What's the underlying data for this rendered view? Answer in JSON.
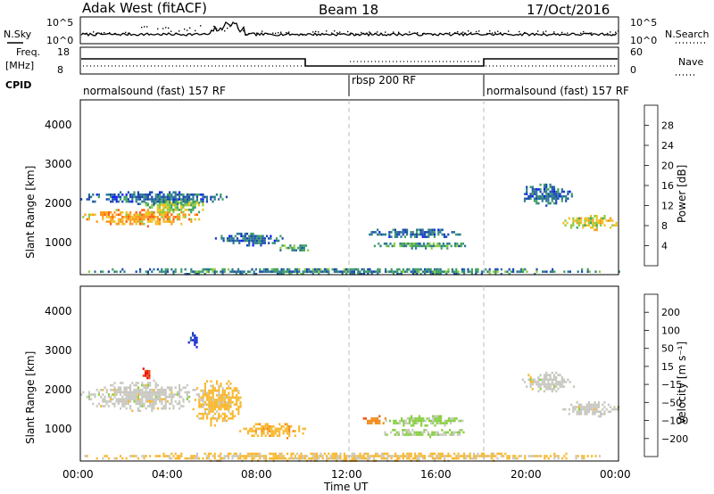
{
  "header": {
    "station": "Adak West (fitACF)",
    "beam": "Beam 18",
    "date": "17/Oct/2016"
  },
  "aux_panels": {
    "nsky_label": "N.Sky",
    "nsearch_label": "N.Search",
    "freq_label_1": "Freq.",
    "freq_label_2": "[MHz]",
    "nave_label": "Nave",
    "cpid_label": "CPID",
    "noise_left_ticks": [
      "10^5",
      "10^0"
    ],
    "noise_right_ticks": [
      "10^5",
      "10^0"
    ],
    "freq_left_ticks": [
      "18",
      "8"
    ],
    "nave_right_ticks": [
      "60",
      "0"
    ]
  },
  "cpid_segments": [
    {
      "label": "normalsound (fast) 157 RF",
      "start_hour": 0,
      "end_hour": 12
    },
    {
      "label": "rbsp 200 RF",
      "start_hour": 12,
      "end_hour": 18
    },
    {
      "label": "normalsound (fast) 157 RF",
      "start_hour": 18,
      "end_hour": 24
    }
  ],
  "axes": {
    "ylabel": "Slant Range [km]",
    "xlabel": "Time UT",
    "x_ticks": [
      "00:00",
      "04:00",
      "08:00",
      "12:00",
      "16:00",
      "20:00",
      "00:00"
    ],
    "y_ticks": [
      "1000",
      "2000",
      "3000",
      "4000"
    ]
  },
  "colorbars": {
    "power": {
      "label": "Power [dB]",
      "ticks": [
        "4",
        "8",
        "12",
        "16",
        "20",
        "24",
        "28"
      ],
      "colors": [
        "#0a1aff",
        "#1846b4",
        "#2a7890",
        "#3ea060",
        "#8ccc3c",
        "#f0c020",
        "#ff9618",
        "#ff5a10",
        "#ee1010"
      ]
    },
    "velocity": {
      "label": "Velocity [m s⁻¹]",
      "ticks": [
        "200",
        "100",
        "50",
        "15",
        "−15",
        "−50",
        "−100",
        "−200"
      ],
      "colors": [
        "#1a2ad0",
        "#2a66a8",
        "#3aa060",
        "#88d040",
        "#c8c8c0",
        "#f8b830",
        "#f08a18",
        "#f05010",
        "#e81010"
      ]
    }
  },
  "chart_data": [
    {
      "type": "heatmap",
      "title": "Power",
      "xlabel": "Time UT",
      "ylabel": "Slant Range [km]",
      "xlim_hours": [
        0,
        24
      ],
      "ylim_km": [
        180,
        4600
      ],
      "clim_db": [
        0,
        32
      ],
      "regions": [
        {
          "t_start": 0.0,
          "t_end": 5.5,
          "range_km": [
            1400,
            1900
          ],
          "value_db": 22
        },
        {
          "t_start": 2.8,
          "t_end": 5.6,
          "range_km": [
            1700,
            2200
          ],
          "value_db": 16
        },
        {
          "t_start": 0.0,
          "t_end": 6.5,
          "range_km": [
            1950,
            2350
          ],
          "value_db": 8
        },
        {
          "t_start": 6.0,
          "t_end": 9.0,
          "range_km": [
            900,
            1300
          ],
          "value_db": 8
        },
        {
          "t_start": 8.8,
          "t_end": 10.3,
          "range_km": [
            750,
            1000
          ],
          "value_db": 12
        },
        {
          "t_start": 12.6,
          "t_end": 17.2,
          "range_km": [
            1100,
            1400
          ],
          "value_db": 8
        },
        {
          "t_start": 13.0,
          "t_end": 17.5,
          "range_km": [
            850,
            1050
          ],
          "value_db": 12
        },
        {
          "t_start": 19.6,
          "t_end": 22.0,
          "range_km": [
            1900,
            2600
          ],
          "value_db": 8
        },
        {
          "t_start": 21.5,
          "t_end": 24.0,
          "range_km": [
            1300,
            1750
          ],
          "value_db": 18
        },
        {
          "t_start": 0.0,
          "t_end": 24.0,
          "range_km": [
            180,
            400
          ],
          "value_db": 10
        }
      ]
    },
    {
      "type": "heatmap",
      "title": "Velocity",
      "xlabel": "Time UT",
      "ylabel": "Slant Range [km]",
      "xlim_hours": [
        0,
        24
      ],
      "ylim_km": [
        180,
        4600
      ],
      "clim_ms": [
        -250,
        250
      ],
      "regions": [
        {
          "t_start": 0.0,
          "t_end": 5.5,
          "range_km": [
            1400,
            2300
          ],
          "value_ms": 0
        },
        {
          "t_start": 2.6,
          "t_end": 3.2,
          "range_km": [
            2200,
            2600
          ],
          "value_ms": -200
        },
        {
          "t_start": 4.8,
          "t_end": 5.3,
          "range_km": [
            3000,
            3500
          ],
          "value_ms": 200
        },
        {
          "t_start": 5.0,
          "t_end": 7.2,
          "range_km": [
            1000,
            2400
          ],
          "value_ms": -50
        },
        {
          "t_start": 7.0,
          "t_end": 10.2,
          "range_km": [
            750,
            1200
          ],
          "value_ms": -60
        },
        {
          "t_start": 12.6,
          "t_end": 13.6,
          "range_km": [
            1100,
            1400
          ],
          "value_ms": -120
        },
        {
          "t_start": 13.5,
          "t_end": 17.2,
          "range_km": [
            1050,
            1400
          ],
          "value_ms": 40
        },
        {
          "t_start": 13.2,
          "t_end": 17.5,
          "range_km": [
            800,
            1050
          ],
          "value_ms": 30
        },
        {
          "t_start": 19.6,
          "t_end": 22.0,
          "range_km": [
            1900,
            2500
          ],
          "value_ms": 0
        },
        {
          "t_start": 21.5,
          "t_end": 24.0,
          "range_km": [
            1300,
            1750
          ],
          "value_ms": 0
        },
        {
          "t_start": 0.0,
          "t_end": 24.0,
          "range_km": [
            180,
            450
          ],
          "value_ms": -40
        }
      ]
    }
  ]
}
